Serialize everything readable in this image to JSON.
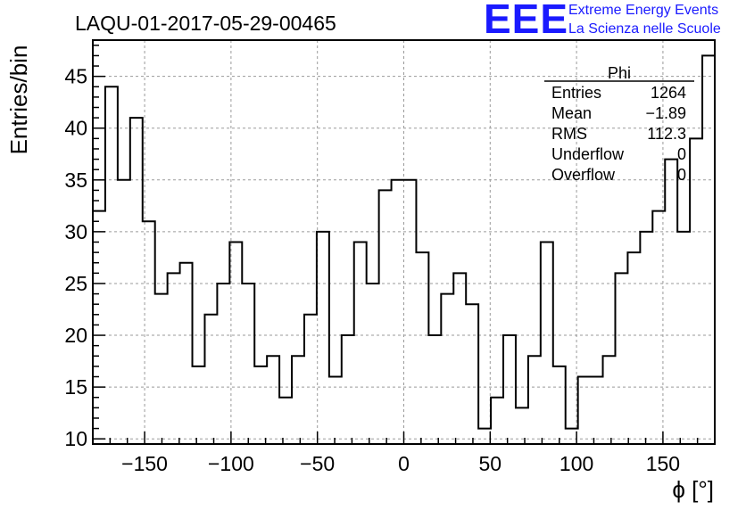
{
  "chart_data": {
    "type": "histogram",
    "title": "LAQU-01-2017-05-29-00465",
    "xlabel": "ϕ [°]",
    "ylabel": "Entries/bin",
    "xlim": [
      -180,
      180
    ],
    "ylim": [
      9.5,
      48.5
    ],
    "grid": true,
    "bin_width": 7.2,
    "x_ticks": [
      -150,
      -100,
      -50,
      0,
      50,
      100,
      150
    ],
    "x_tick_labels": [
      "−150",
      "−100",
      "−50",
      "0",
      "50",
      "100",
      "150"
    ],
    "y_ticks": [
      10,
      15,
      20,
      25,
      30,
      35,
      40,
      45
    ],
    "y_tick_labels": [
      "10",
      "15",
      "20",
      "25",
      "30",
      "35",
      "40",
      "45"
    ],
    "bin_edges_start": -180,
    "values": [
      32,
      44,
      35,
      41,
      31,
      24,
      26,
      27,
      17,
      22,
      25,
      29,
      25,
      17,
      18,
      14,
      18,
      22,
      30,
      16,
      20,
      29,
      25,
      34,
      35,
      35,
      28,
      20,
      24,
      26,
      23,
      11,
      14,
      20,
      13,
      18,
      29,
      17,
      11,
      16,
      16,
      18,
      26,
      28,
      30,
      32,
      37,
      30,
      39,
      47
    ],
    "stats": {
      "name": "Phi",
      "rows": [
        {
          "label": "Entries",
          "value": "1264"
        },
        {
          "label": "Mean",
          "value": "−1.89"
        },
        {
          "label": "RMS",
          "value": "112.3"
        },
        {
          "label": "Underflow",
          "value": "0"
        },
        {
          "label": "Overflow",
          "value": "0"
        }
      ]
    }
  },
  "logo": {
    "mark": "EEE",
    "line1": "Extreme Energy Events",
    "line2": "La Scienza nelle Scuole",
    "color": "#1a1aff"
  }
}
